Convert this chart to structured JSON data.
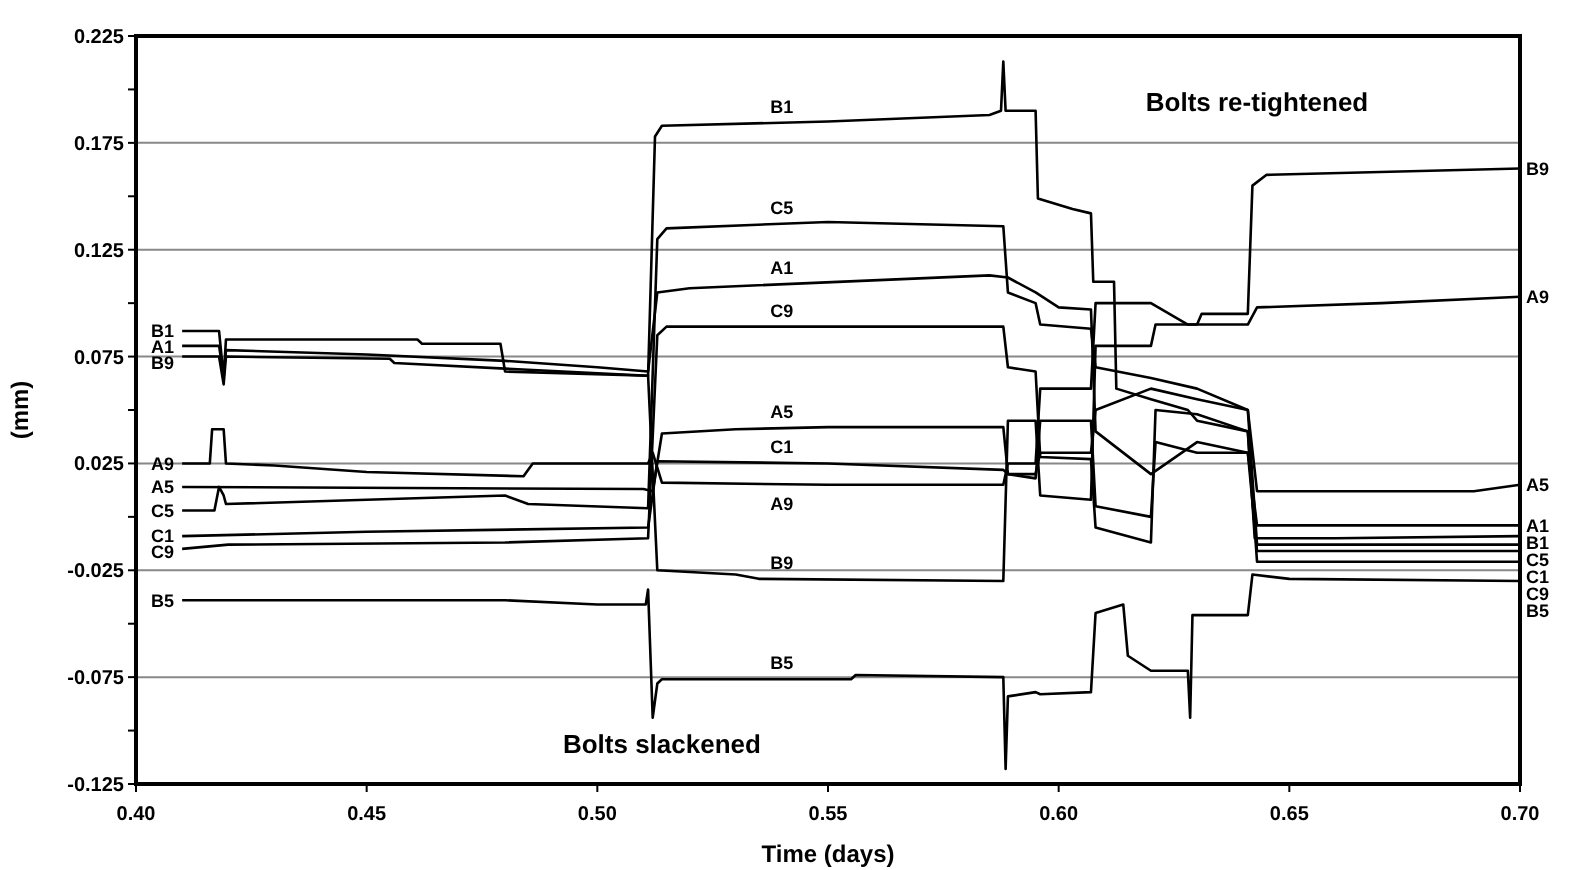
{
  "chart_data": {
    "type": "line",
    "xlabel": "Time (days)",
    "ylabel": "(mm)",
    "xlim": [
      0.4,
      0.7
    ],
    "xticks": [
      {
        "value": 0.4,
        "label": "0.40"
      },
      {
        "value": 0.45,
        "label": "0.45"
      },
      {
        "value": 0.5,
        "label": "0.50"
      },
      {
        "value": 0.55,
        "label": "0.55"
      },
      {
        "value": 0.6,
        "label": "0.60"
      },
      {
        "value": 0.65,
        "label": "0.65"
      },
      {
        "value": 0.7,
        "label": "0.70"
      }
    ],
    "ylim": [
      -0.125,
      0.225
    ],
    "yticks": [
      -0.125,
      {
        "value": -0.1,
        "label": null
      },
      -0.075,
      {
        "value": -0.05,
        "label": null
      },
      -0.025,
      {
        "value": 0,
        "label": null
      },
      0.025,
      {
        "value": 0.05,
        "label": null
      },
      0.075,
      {
        "value": 0.1,
        "label": null
      },
      0.125,
      {
        "value": 0.15,
        "label": null
      },
      0.175,
      {
        "value": 0.2,
        "label": null
      },
      0.225
    ],
    "grid": "y",
    "annotations": [
      "Bolts slackened",
      "Bolts re-tightened"
    ],
    "series": [
      {
        "name": "B1",
        "color": "#000000",
        "x": [
          0.41,
          0.418,
          0.419,
          0.4195,
          0.461,
          0.462,
          0.479,
          0.48,
          0.511,
          0.5125,
          0.514,
          0.55,
          0.585,
          0.5875,
          0.588,
          0.5885,
          0.595,
          0.5955,
          0.603,
          0.607,
          0.6075,
          0.612,
          0.6125,
          0.62,
          0.628,
          0.63,
          0.641,
          0.6425,
          0.66,
          0.7
        ],
        "values": [
          0.087,
          0.087,
          0.065,
          0.083,
          0.083,
          0.081,
          0.081,
          0.068,
          0.066,
          0.178,
          0.183,
          0.185,
          0.188,
          0.19,
          0.213,
          0.19,
          0.19,
          0.149,
          0.144,
          0.142,
          0.11,
          0.11,
          0.06,
          0.055,
          0.05,
          0.045,
          0.04,
          -0.01,
          -0.01,
          -0.009
        ]
      },
      {
        "name": "A1",
        "color": "#000000",
        "x": [
          0.41,
          0.418,
          0.419,
          0.4195,
          0.45,
          0.48,
          0.5,
          0.511,
          0.513,
          0.52,
          0.585,
          0.589,
          0.595,
          0.6,
          0.607,
          0.608,
          0.62,
          0.63,
          0.641,
          0.643,
          0.7
        ],
        "values": [
          0.08,
          0.08,
          0.066,
          0.078,
          0.076,
          0.073,
          0.07,
          0.068,
          0.105,
          0.107,
          0.113,
          0.112,
          0.105,
          0.098,
          0.097,
          0.04,
          0.02,
          0.035,
          0.03,
          -0.004,
          -0.004
        ]
      },
      {
        "name": "B9",
        "color": "#000000",
        "x": [
          0.41,
          0.418,
          0.419,
          0.4195,
          0.455,
          0.456,
          0.511,
          0.513,
          0.53,
          0.535,
          0.588,
          0.589,
          0.595,
          0.596,
          0.607,
          0.608,
          0.62,
          0.621,
          0.63,
          0.631,
          0.641,
          0.642,
          0.645,
          0.7
        ],
        "values": [
          0.075,
          0.075,
          0.062,
          0.075,
          0.074,
          0.072,
          0.066,
          -0.025,
          -0.027,
          -0.029,
          -0.03,
          0.045,
          0.045,
          0.01,
          0.008,
          0.08,
          0.08,
          0.09,
          0.09,
          0.095,
          0.095,
          0.155,
          0.16,
          0.163
        ]
      },
      {
        "name": "A9",
        "color": "#000000",
        "x": [
          0.41,
          0.416,
          0.4165,
          0.419,
          0.4195,
          0.43,
          0.45,
          0.484,
          0.486,
          0.511,
          0.512,
          0.514,
          0.55,
          0.588,
          0.589,
          0.595,
          0.596,
          0.607,
          0.608,
          0.62,
          0.628,
          0.641,
          0.643,
          0.67,
          0.7
        ],
        "values": [
          0.025,
          0.025,
          0.041,
          0.041,
          0.025,
          0.024,
          0.021,
          0.019,
          0.025,
          0.025,
          0.03,
          0.016,
          0.015,
          0.015,
          0.025,
          0.025,
          0.06,
          0.06,
          0.1,
          0.1,
          0.09,
          0.09,
          0.098,
          0.1,
          0.103
        ]
      },
      {
        "name": "A5",
        "color": "#000000",
        "x": [
          0.41,
          0.51,
          0.512,
          0.514,
          0.53,
          0.55,
          0.588,
          0.589,
          0.595,
          0.596,
          0.607,
          0.608,
          0.62,
          0.63,
          0.641,
          0.643,
          0.69,
          0.7
        ],
        "values": [
          0.014,
          0.013,
          0.012,
          0.039,
          0.041,
          0.042,
          0.042,
          0.02,
          0.02,
          0.03,
          0.03,
          0.05,
          0.06,
          0.055,
          0.05,
          0.012,
          0.012,
          0.015
        ]
      },
      {
        "name": "C5",
        "color": "#000000",
        "x": [
          0.41,
          0.417,
          0.418,
          0.419,
          0.4195,
          0.45,
          0.48,
          0.485,
          0.511,
          0.513,
          0.515,
          0.55,
          0.588,
          0.589,
          0.595,
          0.596,
          0.607,
          0.608,
          0.62,
          0.63,
          0.641,
          0.643,
          0.7
        ],
        "values": [
          0.003,
          0.003,
          0.014,
          0.01,
          0.006,
          0.008,
          0.01,
          0.006,
          0.004,
          0.13,
          0.135,
          0.138,
          0.136,
          0.105,
          0.1,
          0.09,
          0.088,
          0.07,
          0.065,
          0.06,
          0.05,
          -0.013,
          -0.013
        ]
      },
      {
        "name": "C1",
        "color": "#000000",
        "x": [
          0.41,
          0.45,
          0.511,
          0.513,
          0.55,
          0.588,
          0.589,
          0.595,
          0.596,
          0.607,
          0.608,
          0.62,
          0.621,
          0.63,
          0.641,
          0.643,
          0.7
        ],
        "values": [
          -0.009,
          -0.007,
          -0.005,
          0.026,
          0.025,
          0.022,
          0.02,
          0.018,
          0.045,
          0.045,
          0.005,
          0,
          0.035,
          0.03,
          0.03,
          -0.016,
          -0.016
        ]
      },
      {
        "name": "C9",
        "color": "#000000",
        "x": [
          0.41,
          0.42,
          0.48,
          0.511,
          0.513,
          0.515,
          0.588,
          0.589,
          0.595,
          0.596,
          0.607,
          0.608,
          0.62,
          0.621,
          0.63,
          0.641,
          0.643,
          0.7
        ],
        "values": [
          -0.015,
          -0.013,
          -0.012,
          -0.01,
          0.085,
          0.089,
          0.089,
          0.07,
          0.068,
          0.028,
          0.027,
          -0.005,
          -0.012,
          0.05,
          0.048,
          0.04,
          -0.021,
          -0.021
        ]
      },
      {
        "name": "B5",
        "color": "#000000",
        "x": [
          0.41,
          0.48,
          0.5,
          0.5105,
          0.511,
          0.512,
          0.513,
          0.514,
          0.555,
          0.556,
          0.588,
          0.5885,
          0.589,
          0.595,
          0.596,
          0.607,
          0.608,
          0.614,
          0.615,
          0.62,
          0.628,
          0.6285,
          0.629,
          0.641,
          0.642,
          0.65,
          0.7
        ],
        "values": [
          -0.039,
          -0.039,
          -0.041,
          -0.041,
          -0.034,
          -0.094,
          -0.078,
          -0.076,
          -0.076,
          -0.074,
          -0.075,
          -0.118,
          -0.084,
          -0.082,
          -0.083,
          -0.082,
          -0.045,
          -0.041,
          -0.065,
          -0.072,
          -0.072,
          -0.094,
          -0.046,
          -0.046,
          -0.027,
          -0.029,
          -0.03
        ]
      }
    ]
  }
}
